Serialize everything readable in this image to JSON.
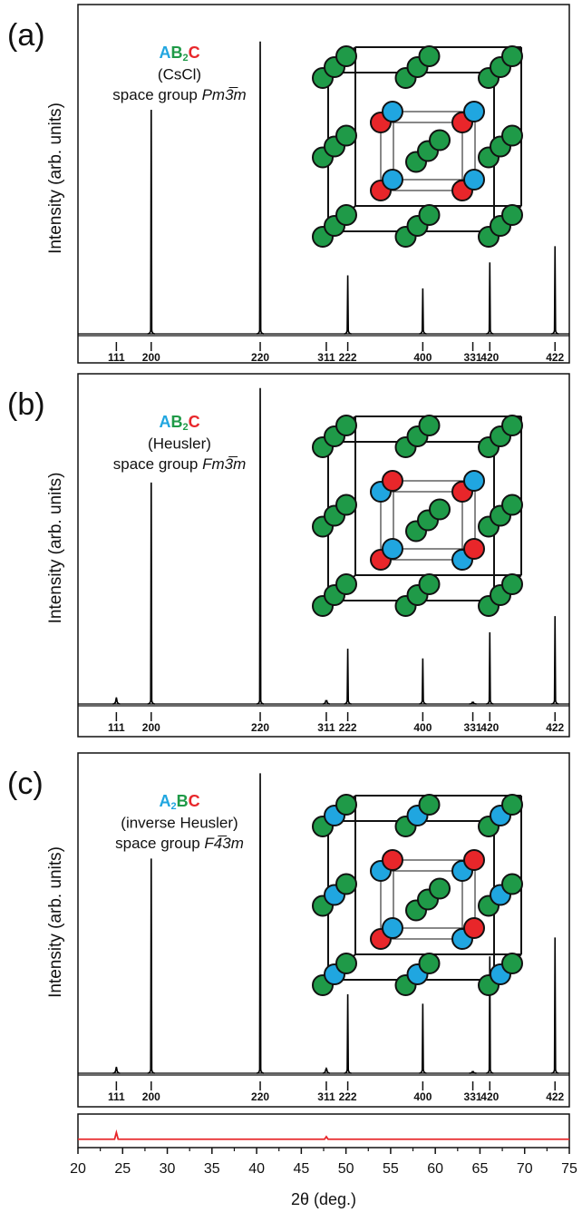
{
  "chart_data": [
    {
      "type": "peaks",
      "label": "(a)",
      "formula": [
        {
          "text": "A",
          "color": "#20a6e0"
        },
        {
          "text": "B",
          "color": "#1f9a48"
        },
        {
          "text": "2",
          "color": "#1f9a48",
          "sub": true
        },
        {
          "text": "C",
          "color": "#e8262a"
        }
      ],
      "structure": "(CsCl)",
      "space_group_prefix": "space group",
      "space_group": "Pm3̅m",
      "ylabel": "Intensity (arb. units)",
      "ylim": [
        0,
        100
      ],
      "color": "#000000",
      "x": [
        28.2,
        40.4,
        50.2,
        58.6,
        66.1,
        73.4
      ],
      "values": [
        69,
        90,
        18,
        14,
        22,
        27
      ],
      "hkl": [
        "111",
        "200",
        "220",
        "311",
        "222",
        "400",
        "331",
        "420",
        "422"
      ],
      "hkl_x": [
        24.3,
        28.2,
        40.4,
        47.8,
        50.2,
        58.6,
        64.2,
        66.1,
        73.4
      ]
    },
    {
      "type": "peaks",
      "label": "(b)",
      "formula": [
        {
          "text": "A",
          "color": "#20a6e0"
        },
        {
          "text": "B",
          "color": "#1f9a48"
        },
        {
          "text": "2",
          "color": "#1f9a48",
          "sub": true
        },
        {
          "text": "C",
          "color": "#e8262a"
        }
      ],
      "structure": "(Heusler)",
      "space_group_prefix": "space group",
      "space_group": "Fm3̅m",
      "ylabel": "Intensity (arb. units)",
      "ylim": [
        0,
        100
      ],
      "color": "#000000",
      "x": [
        24.3,
        28.2,
        40.4,
        47.8,
        50.2,
        58.6,
        64.2,
        66.1,
        73.4
      ],
      "values": [
        2,
        68,
        97,
        1,
        17,
        14,
        0.5,
        22,
        27
      ],
      "hkl": [
        "111",
        "200",
        "220",
        "311",
        "222",
        "400",
        "331",
        "420",
        "422"
      ],
      "hkl_x": [
        24.3,
        28.2,
        40.4,
        47.8,
        50.2,
        58.6,
        64.2,
        66.1,
        73.4
      ]
    },
    {
      "type": "peaks",
      "label": "(c)",
      "formula": [
        {
          "text": "A",
          "color": "#20a6e0"
        },
        {
          "text": "2",
          "color": "#20a6e0",
          "sub": true
        },
        {
          "text": "B",
          "color": "#1f9a48"
        },
        {
          "text": "C",
          "color": "#e8262a"
        }
      ],
      "structure": "(inverse Heusler)",
      "space_group_prefix": "space group",
      "space_group": "F4̅3m",
      "ylabel": "Intensity (arb. units)",
      "ylim": [
        0,
        100
      ],
      "color": "#000000",
      "x": [
        24.3,
        28.2,
        40.4,
        47.8,
        50.2,
        58.6,
        64.2,
        66.1,
        73.4
      ],
      "values": [
        2,
        68,
        95,
        1.5,
        25,
        22,
        0.5,
        37,
        43
      ],
      "hkl": [
        "111",
        "200",
        "220",
        "311",
        "222",
        "400",
        "331",
        "420",
        "422"
      ],
      "hkl_x": [
        24.3,
        28.2,
        40.4,
        47.8,
        50.2,
        58.6,
        64.2,
        66.1,
        73.4
      ]
    },
    {
      "type": "line",
      "color": "#e8262a",
      "ylim": [
        -5,
        15
      ],
      "x": [
        20,
        24.1,
        24.3,
        24.5,
        47.6,
        47.8,
        48.0,
        75
      ],
      "values": [
        0,
        0,
        4,
        0,
        0,
        1.5,
        0,
        0
      ],
      "xlim": [
        20,
        75
      ],
      "xticks": [
        20,
        25,
        30,
        35,
        40,
        45,
        50,
        55,
        60,
        65,
        70,
        75
      ],
      "xlabel": "2θ (deg.)"
    }
  ]
}
